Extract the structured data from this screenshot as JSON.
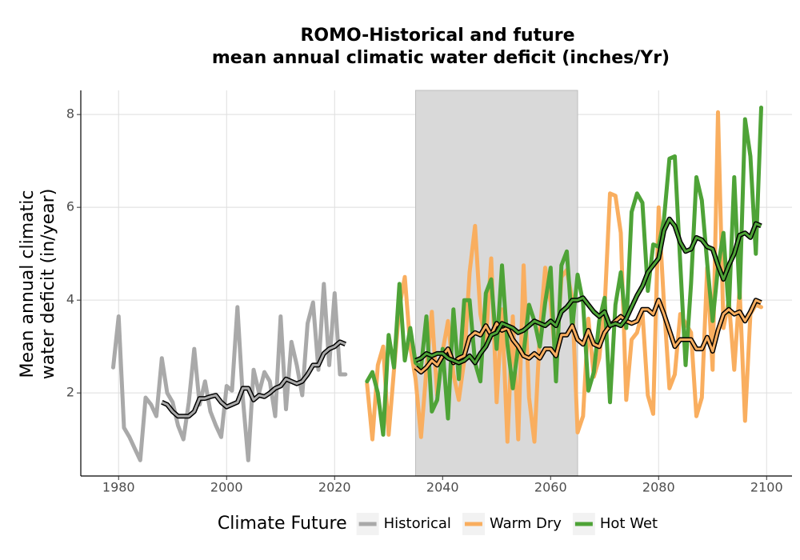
{
  "chart_data": {
    "type": "line",
    "title": [
      "ROMO-Historical and future",
      "mean annual climatic water deficit (inches/Yr)"
    ],
    "ylabel": [
      "Mean annual climatic",
      "water deficit (in/year)"
    ],
    "legend_title": "Climate Future",
    "legend_position": "bottom",
    "grid": true,
    "xlim": [
      1973,
      2104.7
    ],
    "ylim": [
      0.21,
      8.52
    ],
    "xticks": [
      1980,
      2000,
      2020,
      2040,
      2060,
      2080,
      2100
    ],
    "yticks": [
      2,
      4,
      6,
      8
    ],
    "shade": {
      "x": [
        2035,
        2065
      ],
      "color": "#d9d9d9"
    },
    "series": [
      {
        "name": "Historical",
        "color": "#a9a9a9",
        "x": [
          1979,
          1980,
          1981,
          1982,
          1983,
          1984,
          1985,
          1986,
          1987,
          1988,
          1989,
          1990,
          1991,
          1992,
          1993,
          1994,
          1995,
          1996,
          1997,
          1998,
          1999,
          2000,
          2001,
          2002,
          2003,
          2004,
          2005,
          2006,
          2007,
          2008,
          2009,
          2010,
          2011,
          2012,
          2013,
          2014,
          2015,
          2016,
          2017,
          2018,
          2019,
          2020,
          2021,
          2022
        ],
        "values": [
          2.55,
          3.65,
          1.25,
          1.05,
          0.8,
          0.55,
          1.9,
          1.75,
          1.5,
          2.75,
          2.0,
          1.8,
          1.3,
          1.0,
          1.8,
          2.95,
          1.75,
          2.25,
          1.6,
          1.3,
          1.05,
          2.15,
          2.05,
          3.85,
          1.9,
          0.55,
          2.5,
          2.0,
          2.45,
          2.25,
          1.5,
          3.65,
          1.65,
          3.1,
          2.6,
          1.95,
          3.5,
          3.95,
          2.5,
          4.35,
          2.6,
          4.15,
          2.4,
          2.4
        ],
        "trend": {
          "x": [
            1988,
            1989,
            1990,
            1991,
            1992,
            1993,
            1994,
            1995,
            1996,
            1997,
            1998,
            1999,
            2000,
            2001,
            2002,
            2003,
            2004,
            2005,
            2006,
            2007,
            2008,
            2009,
            2010,
            2011,
            2012,
            2013,
            2014,
            2015,
            2016,
            2017,
            2018,
            2019,
            2020,
            2021,
            2022
          ],
          "values": [
            1.8,
            1.75,
            1.6,
            1.5,
            1.5,
            1.5,
            1.6,
            1.88,
            1.88,
            1.92,
            1.95,
            1.8,
            1.7,
            1.75,
            1.8,
            2.1,
            2.1,
            1.85,
            1.95,
            1.92,
            2.0,
            2.1,
            2.15,
            2.3,
            2.25,
            2.2,
            2.25,
            2.4,
            2.6,
            2.6,
            2.85,
            2.95,
            3.0,
            3.1,
            3.05
          ]
        }
      },
      {
        "name": "Warm Dry",
        "color": "#f9ae5f",
        "x": [
          2026,
          2027,
          2028,
          2029,
          2030,
          2031,
          2032,
          2033,
          2034,
          2035,
          2036,
          2037,
          2038,
          2039,
          2040,
          2041,
          2042,
          2043,
          2044,
          2045,
          2046,
          2047,
          2048,
          2049,
          2050,
          2051,
          2052,
          2053,
          2054,
          2055,
          2056,
          2057,
          2058,
          2059,
          2060,
          2061,
          2062,
          2063,
          2064,
          2065,
          2066,
          2067,
          2068,
          2069,
          2070,
          2071,
          2072,
          2073,
          2074,
          2075,
          2076,
          2077,
          2078,
          2079,
          2080,
          2081,
          2082,
          2083,
          2084,
          2085,
          2086,
          2087,
          2088,
          2089,
          2090,
          2091,
          2092,
          2093,
          2094,
          2095,
          2096,
          2097,
          2098,
          2099
        ],
        "values": [
          2.2,
          1.0,
          2.6,
          3.0,
          1.1,
          2.5,
          3.85,
          4.5,
          3.0,
          2.3,
          1.05,
          2.5,
          3.75,
          1.95,
          2.9,
          3.55,
          2.4,
          1.85,
          2.7,
          4.6,
          5.6,
          3.7,
          3.1,
          4.9,
          1.8,
          3.8,
          0.95,
          3.65,
          1.0,
          4.75,
          1.9,
          0.95,
          3.3,
          4.7,
          3.95,
          2.6,
          4.5,
          4.65,
          4.0,
          1.15,
          1.5,
          3.6,
          2.35,
          2.75,
          3.85,
          6.3,
          6.25,
          5.45,
          1.85,
          3.15,
          3.3,
          3.75,
          1.95,
          1.55,
          6.0,
          3.9,
          2.1,
          2.4,
          3.7,
          3.5,
          3.3,
          1.5,
          1.9,
          4.7,
          2.5,
          8.05,
          3.4,
          4.0,
          2.5,
          4.25,
          1.4,
          3.7,
          3.9,
          3.85
        ],
        "trend": {
          "x": [
            2035,
            2036,
            2037,
            2038,
            2039,
            2040,
            2041,
            2042,
            2043,
            2044,
            2045,
            2046,
            2047,
            2048,
            2049,
            2050,
            2051,
            2052,
            2053,
            2054,
            2055,
            2056,
            2057,
            2058,
            2059,
            2060,
            2061,
            2062,
            2063,
            2064,
            2065,
            2066,
            2067,
            2068,
            2069,
            2070,
            2071,
            2072,
            2073,
            2074,
            2075,
            2076,
            2077,
            2078,
            2079,
            2080,
            2081,
            2082,
            2083,
            2084,
            2085,
            2086,
            2087,
            2088,
            2089,
            2090,
            2091,
            2092,
            2093,
            2094,
            2095,
            2096,
            2097,
            2098,
            2099
          ],
          "values": [
            2.55,
            2.45,
            2.55,
            2.7,
            2.6,
            2.8,
            2.95,
            2.65,
            2.75,
            2.8,
            3.2,
            3.3,
            3.25,
            3.45,
            3.25,
            3.5,
            3.35,
            3.4,
            3.15,
            3.0,
            2.8,
            2.75,
            2.85,
            2.75,
            2.95,
            2.95,
            2.8,
            3.25,
            3.25,
            3.45,
            3.15,
            3.05,
            3.35,
            3.05,
            3.0,
            3.3,
            3.45,
            3.55,
            3.65,
            3.55,
            3.5,
            3.55,
            3.8,
            3.8,
            3.7,
            4.0,
            3.7,
            3.35,
            3.0,
            3.15,
            3.15,
            3.15,
            2.95,
            2.95,
            3.2,
            2.9,
            3.35,
            3.7,
            3.8,
            3.7,
            3.75,
            3.55,
            3.75,
            4.0,
            3.95
          ]
        }
      },
      {
        "name": "Hot Wet",
        "color": "#4ea337",
        "x": [
          2026,
          2027,
          2028,
          2029,
          2030,
          2031,
          2032,
          2033,
          2034,
          2035,
          2036,
          2037,
          2038,
          2039,
          2040,
          2041,
          2042,
          2043,
          2044,
          2045,
          2046,
          2047,
          2048,
          2049,
          2050,
          2051,
          2052,
          2053,
          2054,
          2055,
          2056,
          2057,
          2058,
          2059,
          2060,
          2061,
          2062,
          2063,
          2064,
          2065,
          2066,
          2067,
          2068,
          2069,
          2070,
          2071,
          2072,
          2073,
          2074,
          2075,
          2076,
          2077,
          2078,
          2079,
          2080,
          2081,
          2082,
          2083,
          2084,
          2085,
          2086,
          2087,
          2088,
          2089,
          2090,
          2091,
          2092,
          2093,
          2094,
          2095,
          2096,
          2097,
          2098,
          2099
        ],
        "values": [
          2.25,
          2.45,
          2.0,
          1.1,
          3.25,
          2.55,
          4.35,
          2.7,
          3.4,
          2.65,
          2.55,
          3.65,
          1.6,
          1.85,
          2.95,
          1.45,
          3.8,
          2.3,
          4.0,
          4.0,
          2.65,
          2.25,
          4.15,
          4.45,
          2.95,
          4.75,
          3.05,
          2.1,
          3.0,
          2.85,
          3.9,
          3.55,
          3.0,
          3.95,
          4.7,
          2.25,
          4.75,
          5.05,
          3.4,
          4.55,
          3.95,
          2.05,
          2.45,
          3.55,
          4.05,
          1.8,
          3.9,
          4.6,
          3.4,
          5.9,
          6.3,
          6.1,
          4.2,
          5.2,
          5.15,
          5.75,
          7.05,
          7.1,
          4.8,
          2.6,
          4.35,
          6.65,
          6.15,
          4.8,
          3.55,
          4.7,
          5.45,
          3.75,
          6.65,
          4.05,
          7.9,
          7.1,
          5.0,
          8.15
        ],
        "trend": {
          "x": [
            2035,
            2036,
            2037,
            2038,
            2039,
            2040,
            2041,
            2042,
            2043,
            2044,
            2045,
            2046,
            2047,
            2048,
            2049,
            2050,
            2051,
            2052,
            2053,
            2054,
            2055,
            2056,
            2057,
            2058,
            2059,
            2060,
            2061,
            2062,
            2063,
            2064,
            2065,
            2066,
            2067,
            2068,
            2069,
            2070,
            2071,
            2072,
            2073,
            2074,
            2075,
            2076,
            2077,
            2078,
            2079,
            2080,
            2081,
            2082,
            2083,
            2084,
            2085,
            2086,
            2087,
            2088,
            2089,
            2090,
            2091,
            2092,
            2093,
            2094,
            2095,
            2096,
            2097,
            2098,
            2099
          ],
          "values": [
            2.7,
            2.75,
            2.85,
            2.8,
            2.85,
            2.85,
            2.75,
            2.7,
            2.65,
            2.7,
            2.8,
            2.65,
            2.85,
            3.0,
            3.25,
            3.3,
            3.5,
            3.45,
            3.4,
            3.3,
            3.35,
            3.45,
            3.55,
            3.5,
            3.45,
            3.55,
            3.45,
            3.75,
            3.85,
            4.0,
            4.0,
            4.05,
            3.9,
            3.75,
            3.65,
            3.75,
            3.45,
            3.5,
            3.45,
            3.6,
            3.85,
            4.1,
            4.3,
            4.6,
            4.75,
            4.9,
            5.5,
            5.75,
            5.6,
            5.25,
            5.05,
            5.1,
            5.35,
            5.3,
            5.15,
            5.1,
            4.75,
            4.45,
            4.75,
            5.0,
            5.4,
            5.45,
            5.35,
            5.65,
            5.6
          ]
        }
      }
    ]
  }
}
